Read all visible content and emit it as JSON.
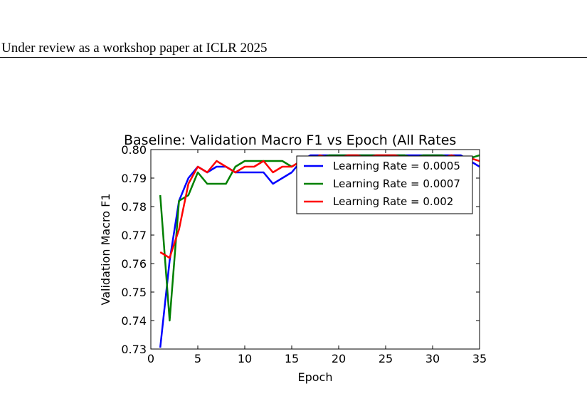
{
  "page": {
    "header": "Under review as a workshop paper at ICLR 2025"
  },
  "chart_data": {
    "type": "line",
    "title": "Baseline: Validation Macro F1 vs Epoch (All Rates",
    "xlabel": "Epoch",
    "ylabel": "Validation Macro F1",
    "xlim": [
      0,
      35
    ],
    "ylim": [
      0.73,
      0.8
    ],
    "xticks": [
      "0",
      "5",
      "10",
      "15",
      "20",
      "25",
      "30",
      "35"
    ],
    "yticks": [
      "0.73",
      "0.74",
      "0.75",
      "0.76",
      "0.77",
      "0.78",
      "0.79",
      "0.80"
    ],
    "grid": false,
    "legend_position": "top-right",
    "series": [
      {
        "name": "Learning Rate = 0.0005",
        "color": "#0000ff",
        "x": [
          1,
          2,
          3,
          4,
          5,
          6,
          7,
          8,
          9,
          10,
          11,
          12,
          13,
          14,
          15,
          16,
          17,
          18,
          19,
          20,
          21,
          22,
          23,
          24,
          25,
          26,
          27,
          28,
          29,
          30,
          31,
          32,
          33,
          34,
          35
        ],
        "values": [
          0.7305,
          0.761,
          0.782,
          0.79,
          0.794,
          0.792,
          0.794,
          0.794,
          0.792,
          0.792,
          0.792,
          0.792,
          0.788,
          0.79,
          0.792,
          0.796,
          0.798,
          0.798,
          0.798,
          0.798,
          0.798,
          0.798,
          0.798,
          0.798,
          0.798,
          0.798,
          0.798,
          0.798,
          0.798,
          0.798,
          0.798,
          0.798,
          0.798,
          0.796,
          0.794
        ]
      },
      {
        "name": "Learning Rate = 0.0007",
        "color": "#008000",
        "x": [
          1,
          2,
          3,
          4,
          5,
          6,
          7,
          8,
          9,
          10,
          11,
          12,
          13,
          14,
          15,
          16,
          17,
          18,
          19,
          20,
          21,
          22,
          23,
          24,
          25,
          26,
          27,
          28,
          29,
          30,
          31,
          32,
          33,
          34,
          35
        ],
        "values": [
          0.784,
          0.74,
          0.782,
          0.784,
          0.792,
          0.788,
          0.788,
          0.788,
          0.794,
          0.796,
          0.796,
          0.796,
          0.796,
          0.796,
          0.794,
          0.796,
          0.797,
          0.797,
          0.798,
          0.798,
          0.798,
          0.798,
          0.798,
          0.798,
          0.798,
          0.798,
          0.798,
          0.797,
          0.798,
          0.798,
          0.798,
          0.797,
          0.797,
          0.797,
          0.798
        ]
      },
      {
        "name": "Learning Rate = 0.002",
        "color": "#ff0000",
        "x": [
          1,
          2,
          3,
          4,
          5,
          6,
          7,
          8,
          9,
          10,
          11,
          12,
          13,
          14,
          15,
          16,
          17,
          18,
          19,
          20,
          21,
          22,
          23,
          24,
          25,
          26,
          27,
          28,
          29,
          30,
          31,
          32,
          33,
          34,
          35
        ],
        "values": [
          0.764,
          0.762,
          0.772,
          0.788,
          0.794,
          0.792,
          0.796,
          0.794,
          0.792,
          0.794,
          0.794,
          0.796,
          0.792,
          0.794,
          0.794,
          0.796,
          0.796,
          0.798,
          0.797,
          0.797,
          0.798,
          0.798,
          0.797,
          0.798,
          0.798,
          0.798,
          0.797,
          0.797,
          0.797,
          0.797,
          0.797,
          0.798,
          0.797,
          0.797,
          0.796
        ]
      }
    ]
  }
}
